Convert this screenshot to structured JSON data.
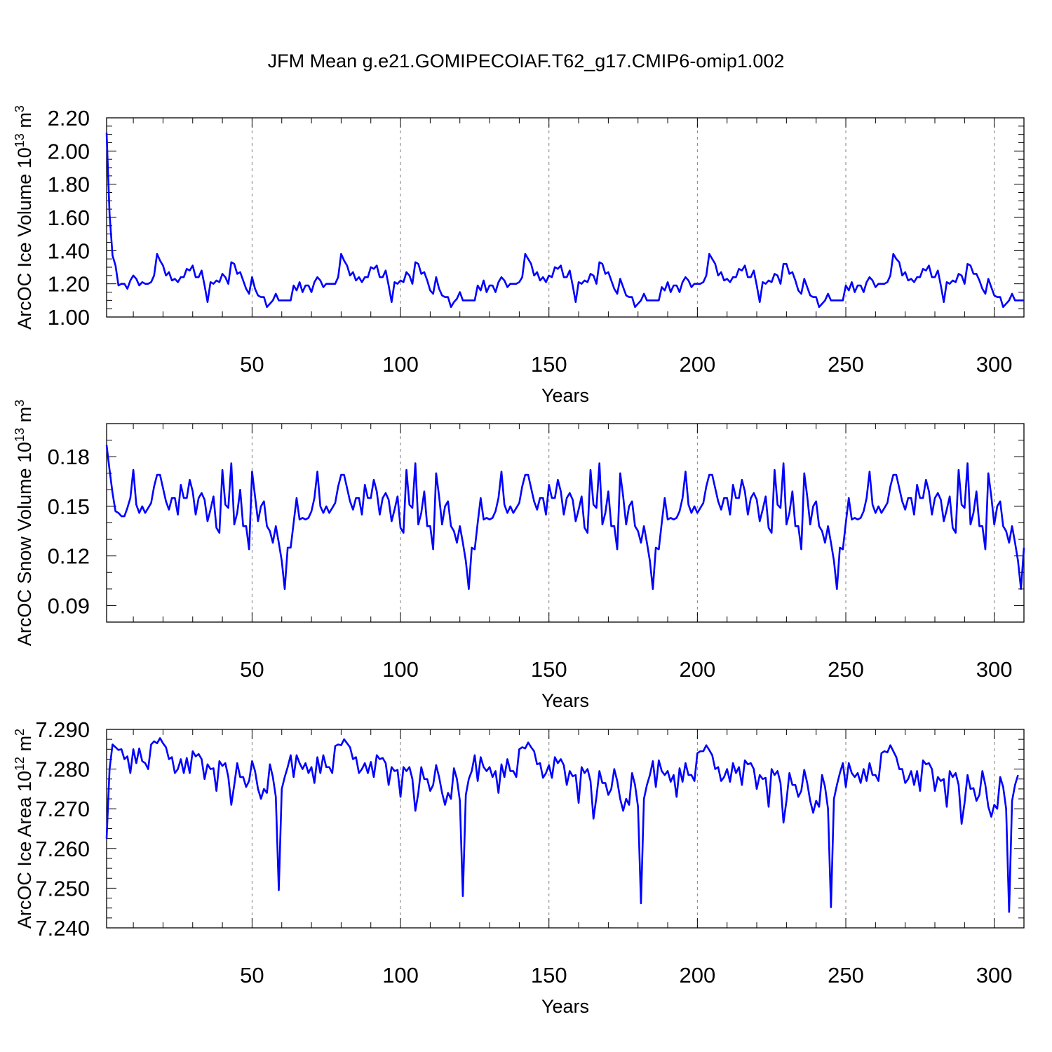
{
  "title": "JFM Mean g.e21.GOMIPECOIAF.T62_g17.CMIP6-omip1.002",
  "colors": {
    "line": "#0000ff",
    "axis": "#000000",
    "grid": "#7f7f7f"
  },
  "chart_data": [
    {
      "type": "line",
      "name": "ice-volume",
      "ylabel_main": "ArcOC Ice Volume 10",
      "ylabel_exp1": "13",
      "ylabel_mid": " m",
      "ylabel_exp2": "3",
      "xlabel": "Years",
      "xlim": [
        1,
        310
      ],
      "ylim": [
        1.0,
        2.2
      ],
      "xticks": [
        50,
        100,
        150,
        200,
        250,
        300
      ],
      "xtick_labels": [
        "50",
        "100",
        "150",
        "200",
        "250",
        "300"
      ],
      "yticks": [
        1.0,
        1.2,
        1.4,
        1.6,
        1.8,
        2.0,
        2.2
      ],
      "ytick_labels": [
        "1.00",
        "1.20",
        "1.40",
        "1.60",
        "1.80",
        "2.00",
        "2.20"
      ],
      "grid_x": [
        50,
        100,
        150,
        200,
        250,
        300
      ],
      "x_start": 1,
      "values": [
        2.11,
        1.62,
        1.37,
        1.31,
        1.19,
        1.2,
        1.2,
        1.17,
        1.22,
        1.25,
        1.23,
        1.19,
        1.21,
        1.2,
        1.2,
        1.21,
        1.25,
        1.38,
        1.34,
        1.31,
        1.25,
        1.27,
        1.22,
        1.23,
        1.21,
        1.24,
        1.24,
        1.29,
        1.28,
        1.31,
        1.24,
        1.24,
        1.28,
        1.19,
        1.09,
        1.21,
        1.2,
        1.22,
        1.21,
        1.26,
        1.24,
        1.2,
        1.33,
        1.32,
        1.26,
        1.27,
        1.22,
        1.17,
        1.14,
        1.24,
        1.17,
        1.13,
        1.12,
        1.12,
        1.06,
        1.08,
        1.1,
        1.14,
        1.1,
        1.1,
        1.1,
        1.1,
        1.1,
        1.19,
        1.16,
        1.21,
        1.15,
        1.19,
        1.19,
        1.15,
        1.21,
        1.24,
        1.22,
        1.18,
        1.2,
        1.2,
        1.2,
        1.2,
        1.24,
        1.38,
        1.34,
        1.31,
        1.25,
        1.27,
        1.22,
        1.24,
        1.21,
        1.24,
        1.24,
        1.3,
        1.29,
        1.31,
        1.24,
        1.24,
        1.28,
        1.19,
        1.09,
        1.21,
        1.2,
        1.22,
        1.21,
        1.27,
        1.25,
        1.2,
        1.33,
        1.32,
        1.26,
        1.27,
        1.22,
        1.16,
        1.14,
        1.24,
        1.17,
        1.13,
        1.12,
        1.12,
        1.06,
        1.09,
        1.11,
        1.15,
        1.1,
        1.1,
        1.1,
        1.1,
        1.1,
        1.19,
        1.16,
        1.22,
        1.15,
        1.19,
        1.19,
        1.15,
        1.21,
        1.24,
        1.22,
        1.18,
        1.2,
        1.2,
        1.2,
        1.21,
        1.24,
        1.38,
        1.35,
        1.32,
        1.25,
        1.27,
        1.22,
        1.24,
        1.21,
        1.25,
        1.24,
        1.3,
        1.29,
        1.31,
        1.24,
        1.24,
        1.28,
        1.19,
        1.09,
        1.21,
        1.2,
        1.22,
        1.21,
        1.26,
        1.25,
        1.2,
        1.33,
        1.32,
        1.26,
        1.27,
        1.22,
        1.17,
        1.14,
        1.23,
        1.18,
        1.13,
        1.12,
        1.12,
        1.06,
        1.08,
        1.1,
        1.14,
        1.1,
        1.1,
        1.1,
        1.1,
        1.1,
        1.18,
        1.16,
        1.21,
        1.15,
        1.19,
        1.19,
        1.15,
        1.21,
        1.24,
        1.22,
        1.18,
        1.2,
        1.2,
        1.2,
        1.21,
        1.25,
        1.38,
        1.35,
        1.32,
        1.25,
        1.27,
        1.22,
        1.23,
        1.21,
        1.24,
        1.24,
        1.29,
        1.28,
        1.31,
        1.24,
        1.24,
        1.28,
        1.19,
        1.09,
        1.21,
        1.2,
        1.22,
        1.21,
        1.26,
        1.25,
        1.2,
        1.32,
        1.32,
        1.26,
        1.27,
        1.22,
        1.16,
        1.14,
        1.23,
        1.18,
        1.13,
        1.12,
        1.12,
        1.06,
        1.08,
        1.1,
        1.14,
        1.1,
        1.1,
        1.1,
        1.1,
        1.1,
        1.19,
        1.16,
        1.21,
        1.15,
        1.19,
        1.19,
        1.15,
        1.21,
        1.24,
        1.22,
        1.18,
        1.2,
        1.2,
        1.2,
        1.21,
        1.25,
        1.38,
        1.35,
        1.33,
        1.25,
        1.27,
        1.22,
        1.23,
        1.21,
        1.24,
        1.24,
        1.29,
        1.28,
        1.31,
        1.24,
        1.24,
        1.28,
        1.19,
        1.09,
        1.21,
        1.2,
        1.22,
        1.21,
        1.26,
        1.25,
        1.2,
        1.32,
        1.31,
        1.26,
        1.26,
        1.22,
        1.17,
        1.14,
        1.23,
        1.18,
        1.13,
        1.12,
        1.12,
        1.06,
        1.08,
        1.1,
        1.14,
        1.1,
        1.1,
        1.1,
        1.1
      ]
    },
    {
      "type": "line",
      "name": "snow-volume",
      "ylabel_main": "ArcOC Snow Volume 10",
      "ylabel_exp1": "13",
      "ylabel_mid": " m",
      "ylabel_exp2": "3",
      "xlabel": "Years",
      "xlim": [
        1,
        310
      ],
      "ylim": [
        0.08,
        0.2
      ],
      "xticks": [
        50,
        100,
        150,
        200,
        250,
        300
      ],
      "xtick_labels": [
        "50",
        "100",
        "150",
        "200",
        "250",
        "300"
      ],
      "yticks": [
        0.09,
        0.12,
        0.15,
        0.18
      ],
      "ytick_labels": [
        "0.09",
        "0.12",
        "0.15",
        "0.18"
      ],
      "grid_x": [
        50,
        100,
        150,
        200,
        250,
        300
      ],
      "x_start": 1,
      "values": [
        0.187,
        0.172,
        0.158,
        0.147,
        0.146,
        0.144,
        0.144,
        0.149,
        0.155,
        0.172,
        0.151,
        0.146,
        0.15,
        0.146,
        0.149,
        0.152,
        0.162,
        0.169,
        0.169,
        0.161,
        0.153,
        0.148,
        0.155,
        0.155,
        0.145,
        0.163,
        0.155,
        0.155,
        0.166,
        0.159,
        0.145,
        0.155,
        0.158,
        0.154,
        0.141,
        0.148,
        0.156,
        0.137,
        0.134,
        0.172,
        0.151,
        0.149,
        0.176,
        0.139,
        0.146,
        0.16,
        0.138,
        0.138,
        0.124,
        0.171,
        0.156,
        0.141,
        0.15,
        0.153,
        0.138,
        0.135,
        0.128,
        0.138,
        0.128,
        0.117,
        0.1,
        0.125,
        0.125,
        0.14,
        0.155,
        0.142,
        0.143,
        0.142,
        0.143,
        0.147,
        0.155,
        0.171,
        0.15,
        0.146,
        0.15,
        0.146,
        0.149,
        0.152,
        0.162,
        0.169,
        0.169,
        0.161,
        0.153,
        0.148,
        0.155,
        0.155,
        0.145,
        0.163,
        0.155,
        0.155,
        0.166,
        0.159,
        0.145,
        0.155,
        0.158,
        0.154,
        0.141,
        0.148,
        0.156,
        0.137,
        0.134,
        0.172,
        0.151,
        0.149,
        0.176,
        0.139,
        0.146,
        0.159,
        0.138,
        0.138,
        0.124,
        0.17,
        0.156,
        0.139,
        0.15,
        0.153,
        0.138,
        0.135,
        0.128,
        0.138,
        0.128,
        0.117,
        0.1,
        0.125,
        0.124,
        0.14,
        0.155,
        0.142,
        0.143,
        0.142,
        0.143,
        0.147,
        0.155,
        0.171,
        0.151,
        0.146,
        0.15,
        0.146,
        0.149,
        0.152,
        0.162,
        0.169,
        0.169,
        0.161,
        0.153,
        0.148,
        0.155,
        0.155,
        0.145,
        0.163,
        0.155,
        0.155,
        0.166,
        0.159,
        0.145,
        0.155,
        0.158,
        0.154,
        0.141,
        0.148,
        0.156,
        0.137,
        0.134,
        0.172,
        0.151,
        0.149,
        0.176,
        0.139,
        0.146,
        0.159,
        0.138,
        0.138,
        0.124,
        0.17,
        0.156,
        0.139,
        0.15,
        0.153,
        0.138,
        0.135,
        0.128,
        0.138,
        0.128,
        0.117,
        0.1,
        0.125,
        0.124,
        0.14,
        0.155,
        0.142,
        0.143,
        0.142,
        0.143,
        0.147,
        0.155,
        0.171,
        0.151,
        0.146,
        0.15,
        0.146,
        0.149,
        0.152,
        0.162,
        0.169,
        0.169,
        0.161,
        0.153,
        0.148,
        0.155,
        0.155,
        0.145,
        0.163,
        0.155,
        0.155,
        0.166,
        0.159,
        0.145,
        0.155,
        0.158,
        0.154,
        0.141,
        0.148,
        0.156,
        0.137,
        0.134,
        0.172,
        0.151,
        0.149,
        0.176,
        0.139,
        0.146,
        0.159,
        0.138,
        0.138,
        0.124,
        0.17,
        0.156,
        0.139,
        0.15,
        0.153,
        0.138,
        0.135,
        0.128,
        0.138,
        0.128,
        0.117,
        0.1,
        0.125,
        0.124,
        0.14,
        0.155,
        0.142,
        0.143,
        0.142,
        0.143,
        0.147,
        0.155,
        0.171,
        0.151,
        0.146,
        0.15,
        0.146,
        0.149,
        0.152,
        0.162,
        0.169,
        0.169,
        0.161,
        0.153,
        0.148,
        0.155,
        0.155,
        0.145,
        0.163,
        0.155,
        0.155,
        0.166,
        0.159,
        0.145,
        0.155,
        0.158,
        0.154,
        0.141,
        0.148,
        0.156,
        0.137,
        0.134,
        0.172,
        0.151,
        0.149,
        0.176,
        0.139,
        0.146,
        0.159,
        0.138,
        0.138,
        0.124,
        0.17,
        0.156,
        0.139,
        0.15,
        0.153,
        0.138,
        0.135,
        0.128,
        0.138,
        0.128,
        0.117,
        0.1,
        0.125
      ]
    },
    {
      "type": "line",
      "name": "ice-area",
      "ylabel_main": "ArcOC Ice Area 10",
      "ylabel_exp1": "12",
      "ylabel_mid": " m",
      "ylabel_exp2": "2",
      "xlabel": "Years",
      "xlim": [
        1,
        310
      ],
      "ylim": [
        7.24,
        7.29
      ],
      "xticks": [
        50,
        100,
        150,
        200,
        250,
        300
      ],
      "xtick_labels": [
        "50",
        "100",
        "150",
        "200",
        "250",
        "300"
      ],
      "yticks": [
        7.24,
        7.25,
        7.26,
        7.27,
        7.28,
        7.29
      ],
      "ytick_labels": [
        "7.240",
        "7.250",
        "7.260",
        "7.270",
        "7.280",
        "7.290"
      ],
      "grid_x": [
        50,
        100,
        150,
        200,
        250,
        300
      ],
      "x_start": 1,
      "values": [
        7.2625,
        7.28,
        7.2862,
        7.2855,
        7.2848,
        7.285,
        7.2825,
        7.2832,
        7.279,
        7.285,
        7.2815,
        7.2852,
        7.282,
        7.2815,
        7.28,
        7.2862,
        7.287,
        7.2865,
        7.2878,
        7.2865,
        7.2855,
        7.2825,
        7.283,
        7.279,
        7.28,
        7.2825,
        7.279,
        7.2828,
        7.279,
        7.2845,
        7.2832,
        7.2838,
        7.2825,
        7.2775,
        7.2812,
        7.28,
        7.2802,
        7.2745,
        7.282,
        7.2808,
        7.2815,
        7.278,
        7.271,
        7.276,
        7.2815,
        7.278,
        7.278,
        7.2755,
        7.277,
        7.282,
        7.2795,
        7.275,
        7.2725,
        7.275,
        7.274,
        7.2812,
        7.278,
        7.273,
        7.2495,
        7.275,
        7.278,
        7.2805,
        7.2835,
        7.278,
        7.2835,
        7.2815,
        7.28,
        7.2815,
        7.279,
        7.2805,
        7.2765,
        7.283,
        7.279,
        7.2835,
        7.2805,
        7.2805,
        7.279,
        7.2858,
        7.2862,
        7.286,
        7.2875,
        7.2865,
        7.2855,
        7.2825,
        7.283,
        7.279,
        7.28,
        7.2815,
        7.279,
        7.2818,
        7.278,
        7.2835,
        7.2825,
        7.2828,
        7.2815,
        7.276,
        7.2805,
        7.2795,
        7.2798,
        7.273,
        7.2805,
        7.2795,
        7.2805,
        7.2775,
        7.2695,
        7.274,
        7.2805,
        7.2775,
        7.2775,
        7.2745,
        7.276,
        7.281,
        7.278,
        7.274,
        7.271,
        7.274,
        7.2725,
        7.2802,
        7.2775,
        7.272,
        7.248,
        7.2735,
        7.2775,
        7.2795,
        7.2835,
        7.277,
        7.283,
        7.2805,
        7.2795,
        7.2805,
        7.278,
        7.2795,
        7.274,
        7.2812,
        7.278,
        7.2825,
        7.2795,
        7.2795,
        7.278,
        7.285,
        7.2855,
        7.2852,
        7.2867,
        7.2855,
        7.2845,
        7.2812,
        7.2815,
        7.2778,
        7.279,
        7.281,
        7.2778,
        7.283,
        7.2815,
        7.2825,
        7.281,
        7.276,
        7.2795,
        7.2782,
        7.2785,
        7.2715,
        7.2805,
        7.279,
        7.28,
        7.277,
        7.2675,
        7.273,
        7.2795,
        7.2765,
        7.2765,
        7.2735,
        7.275,
        7.28,
        7.277,
        7.2725,
        7.2695,
        7.2725,
        7.271,
        7.279,
        7.276,
        7.2705,
        7.2462,
        7.2725,
        7.276,
        7.2785,
        7.282,
        7.2755,
        7.2822,
        7.2795,
        7.2785,
        7.2795,
        7.2768,
        7.2785,
        7.273,
        7.2802,
        7.2768,
        7.2815,
        7.2785,
        7.2785,
        7.277,
        7.284,
        7.2845,
        7.2845,
        7.286,
        7.2848,
        7.2835,
        7.28,
        7.2805,
        7.277,
        7.278,
        7.28,
        7.2768,
        7.2815,
        7.279,
        7.2805,
        7.276,
        7.2822,
        7.2812,
        7.2815,
        7.28,
        7.275,
        7.2785,
        7.2775,
        7.2778,
        7.2705,
        7.28,
        7.2785,
        7.2795,
        7.2765,
        7.2665,
        7.272,
        7.279,
        7.276,
        7.276,
        7.273,
        7.2745,
        7.2798,
        7.2765,
        7.272,
        7.269,
        7.272,
        7.2705,
        7.2785,
        7.2755,
        7.27,
        7.2452,
        7.2725,
        7.276,
        7.279,
        7.2815,
        7.2755,
        7.2815,
        7.279,
        7.278,
        7.279,
        7.2765,
        7.28,
        7.277,
        7.2815,
        7.2785,
        7.2785,
        7.277,
        7.284,
        7.2845,
        7.2842,
        7.286,
        7.2845,
        7.283,
        7.28,
        7.28,
        7.2765,
        7.2775,
        7.2795,
        7.276,
        7.2795,
        7.2745,
        7.2822,
        7.2812,
        7.2815,
        7.28,
        7.2745,
        7.278,
        7.277,
        7.2775,
        7.2705,
        7.2795,
        7.278,
        7.279,
        7.276,
        7.2662,
        7.2715,
        7.2785,
        7.275,
        7.2752,
        7.272,
        7.2735,
        7.2795,
        7.276,
        7.2705,
        7.268,
        7.271,
        7.27,
        7.278,
        7.2755,
        7.27,
        7.244,
        7.272,
        7.276,
        7.2785
      ]
    }
  ]
}
